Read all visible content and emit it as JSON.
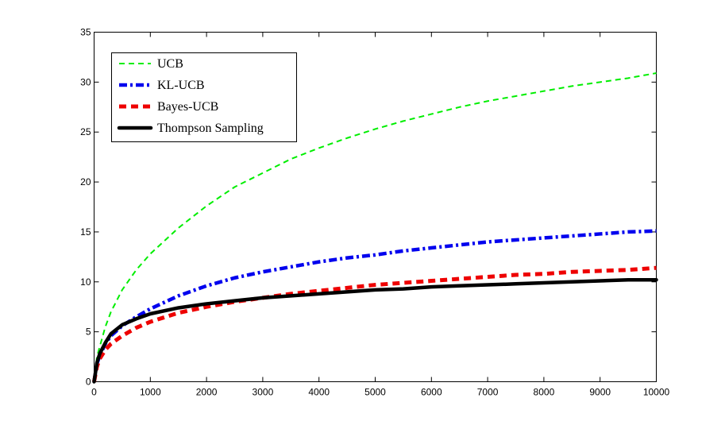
{
  "chart_data": {
    "type": "line",
    "title": "",
    "xlabel": "",
    "ylabel": "",
    "xlim": [
      0,
      10000
    ],
    "ylim": [
      0,
      35
    ],
    "xticks": [
      0,
      1000,
      2000,
      3000,
      4000,
      5000,
      6000,
      7000,
      8000,
      9000,
      10000
    ],
    "yticks": [
      0,
      5,
      10,
      15,
      20,
      25,
      30,
      35
    ],
    "xtick_labels": [
      "0",
      "1000",
      "2000",
      "3000",
      "4000",
      "5000",
      "6000",
      "7000",
      "8000",
      "9000",
      "10000"
    ],
    "ytick_labels": [
      "0",
      "5",
      "10",
      "15",
      "20",
      "25",
      "30",
      "35"
    ],
    "grid": false,
    "legend_position": "top-left",
    "x": [
      0,
      50,
      100,
      200,
      300,
      500,
      750,
      1000,
      1500,
      2000,
      2500,
      3000,
      3500,
      4000,
      4500,
      5000,
      5500,
      6000,
      6500,
      7000,
      7500,
      8000,
      8500,
      9000,
      9500,
      10000
    ],
    "series": [
      {
        "name": "UCB",
        "color": "#00ee00",
        "style": "dashed",
        "values": [
          0,
          2.5,
          3.5,
          5.5,
          7.0,
          9.2,
          11.2,
          12.8,
          15.4,
          17.6,
          19.5,
          20.9,
          22.3,
          23.4,
          24.4,
          25.3,
          26.1,
          26.8,
          27.5,
          28.1,
          28.6,
          29.1,
          29.6,
          30.0,
          30.4,
          30.9
        ]
      },
      {
        "name": "KL-UCB",
        "color": "#0000ee",
        "style": "dashdot",
        "values": [
          0,
          1.8,
          2.6,
          3.8,
          4.6,
          5.6,
          6.5,
          7.3,
          8.6,
          9.6,
          10.4,
          11.0,
          11.5,
          12.0,
          12.4,
          12.7,
          13.1,
          13.4,
          13.7,
          14.0,
          14.2,
          14.4,
          14.6,
          14.8,
          15.0,
          15.1
        ]
      },
      {
        "name": "Bayes-UCB",
        "color": "#ee0000",
        "style": "dashed-thick",
        "values": [
          0,
          1.5,
          2.3,
          3.2,
          3.8,
          4.6,
          5.4,
          6.0,
          6.9,
          7.5,
          8.0,
          8.4,
          8.8,
          9.1,
          9.4,
          9.7,
          9.9,
          10.1,
          10.3,
          10.5,
          10.7,
          10.8,
          11.0,
          11.1,
          11.2,
          11.4
        ]
      },
      {
        "name": "Thompson Sampling",
        "color": "#000000",
        "style": "solid-thick",
        "values": [
          0,
          1.9,
          2.8,
          3.9,
          4.8,
          5.7,
          6.3,
          6.8,
          7.4,
          7.8,
          8.1,
          8.4,
          8.6,
          8.8,
          9.0,
          9.2,
          9.3,
          9.5,
          9.6,
          9.7,
          9.8,
          9.9,
          10.0,
          10.1,
          10.2,
          10.2
        ]
      }
    ]
  }
}
